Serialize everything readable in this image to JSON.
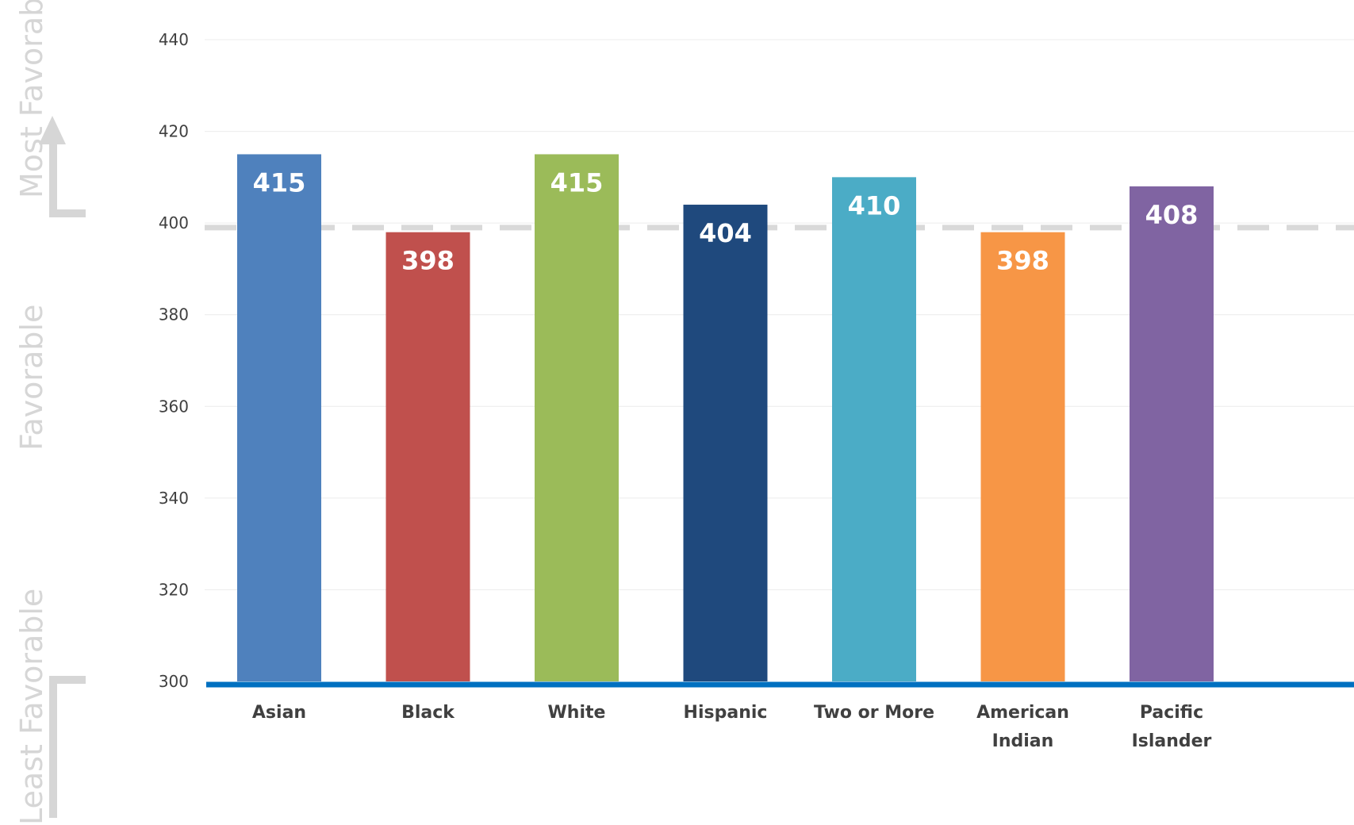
{
  "chart_data": {
    "type": "bar",
    "categories": [
      "Asian",
      "Black",
      "White",
      "Hispanic",
      "Two or More",
      "American Indian",
      "Pacific Islander"
    ],
    "values": [
      415,
      398,
      415,
      404,
      410,
      398,
      408
    ],
    "bar_colors": [
      "#4f81bd",
      "#c0504d",
      "#9bbb59",
      "#1f497d",
      "#4bacc6",
      "#f79646",
      "#8064a2"
    ],
    "reference_line": {
      "value": 399,
      "style": "dashed",
      "color": "#d9d9d9"
    },
    "baseline_color": "#0070c0",
    "yticks": [
      300,
      320,
      340,
      360,
      380,
      400,
      420,
      440
    ],
    "ylim": [
      300,
      440
    ],
    "title": "",
    "xlabel": "",
    "ylabel": "",
    "grid": true
  },
  "side_labels": {
    "top": "Most Favorable",
    "middle": "Favorable",
    "bottom": "Least Favorable"
  },
  "icons": {
    "up_arrow": "up-arrow-icon",
    "down_arrow": "down-arrow-icon"
  }
}
